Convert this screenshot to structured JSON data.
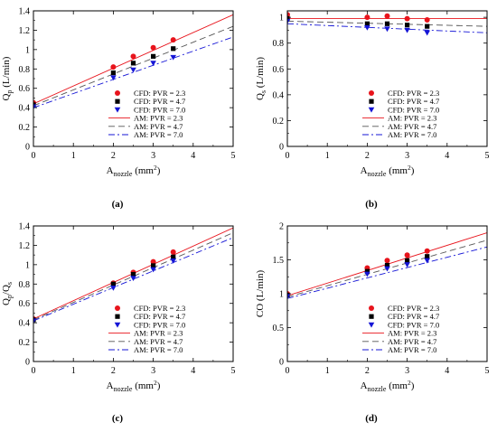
{
  "chart_data": [
    {
      "type": "scatter",
      "panel_label": "(a)",
      "ylabel": {
        "main": "Q",
        "sub": "p",
        "rest": " (L/min)"
      },
      "xlabel": {
        "main": "A",
        "sub": "nozzle",
        "rest": " (mm",
        "sup": "2",
        "close": ")"
      },
      "xlim": [
        0,
        5
      ],
      "ylim": [
        0,
        1.4
      ],
      "xticks": [
        "0",
        "1",
        "2",
        "3",
        "4",
        "5"
      ],
      "yticks": [
        "0",
        "0.2",
        "0.4",
        "0.6",
        "0.8",
        "1",
        "1.2",
        "1.4"
      ],
      "legend_position": "bottom-right",
      "series": [
        {
          "name": "CFD: PVR = 2.3",
          "kind": "markers",
          "marker": "circle",
          "color": "#e8141c",
          "x": [
            0,
            2,
            2.5,
            3,
            3.5
          ],
          "y": [
            0.45,
            0.82,
            0.93,
            1.02,
            1.1
          ]
        },
        {
          "name": "CFD: PVR = 4.7",
          "kind": "markers",
          "marker": "square",
          "color": "#000000",
          "x": [
            0,
            2,
            2.5,
            3,
            3.5
          ],
          "y": [
            0.43,
            0.76,
            0.86,
            0.93,
            1.01
          ]
        },
        {
          "name": "CFD: PVR = 7.0",
          "kind": "markers",
          "marker": "triangle",
          "color": "#1515d6",
          "x": [
            0,
            2,
            2.5,
            3,
            3.5
          ],
          "y": [
            0.41,
            0.71,
            0.79,
            0.86,
            0.92
          ]
        },
        {
          "name": "AM: PVR = 2.3",
          "kind": "line",
          "dash": "",
          "color": "#e8141c",
          "x": [
            0,
            5
          ],
          "y": [
            0.44,
            1.36
          ]
        },
        {
          "name": "AM: PVR = 4.7",
          "kind": "line",
          "dash": "7,4",
          "color": "#555555",
          "x": [
            0,
            5
          ],
          "y": [
            0.42,
            1.24
          ]
        },
        {
          "name": "AM: PVR = 7.0",
          "kind": "line",
          "dash": "7,3,2,3",
          "color": "#1515d6",
          "x": [
            0,
            5
          ],
          "y": [
            0.4,
            1.13
          ]
        }
      ]
    },
    {
      "type": "scatter",
      "panel_label": "(b)",
      "ylabel": {
        "main": "Q",
        "sub": "s",
        "rest": " (L/min)"
      },
      "xlabel": {
        "main": "A",
        "sub": "nozzle",
        "rest": " (mm",
        "sup": "2",
        "close": ")"
      },
      "xlim": [
        0,
        5
      ],
      "ylim": [
        0,
        1.05
      ],
      "xticks": [
        "0",
        "1",
        "2",
        "3",
        "4",
        "5"
      ],
      "yticks": [
        "0",
        "0.2",
        "0.4",
        "0.6",
        "0.8",
        "1"
      ],
      "legend_position": "bottom-right",
      "series": [
        {
          "name": "CFD: PVR = 2.3",
          "kind": "markers",
          "marker": "circle",
          "color": "#e8141c",
          "x": [
            0,
            2,
            2.5,
            3,
            3.5
          ],
          "y": [
            1.02,
            1.0,
            1.01,
            0.99,
            0.98
          ]
        },
        {
          "name": "CFD: PVR = 4.7",
          "kind": "markers",
          "marker": "square",
          "color": "#000000",
          "x": [
            0,
            2,
            2.5,
            3,
            3.5
          ],
          "y": [
            0.99,
            0.95,
            0.95,
            0.94,
            0.93
          ]
        },
        {
          "name": "CFD: PVR = 7.0",
          "kind": "markers",
          "marker": "triangle",
          "color": "#1515d6",
          "x": [
            0,
            2,
            2.5,
            3,
            3.5
          ],
          "y": [
            0.97,
            0.92,
            0.91,
            0.9,
            0.88
          ]
        },
        {
          "name": "AM: PVR = 2.3",
          "kind": "line",
          "dash": "",
          "color": "#e8141c",
          "x": [
            0,
            5
          ],
          "y": [
            0.99,
            0.99
          ]
        },
        {
          "name": "AM: PVR = 4.7",
          "kind": "line",
          "dash": "7,4",
          "color": "#555555",
          "x": [
            0,
            5
          ],
          "y": [
            0.97,
            0.93
          ]
        },
        {
          "name": "AM: PVR = 7.0",
          "kind": "line",
          "dash": "7,3,2,3",
          "color": "#1515d6",
          "x": [
            0,
            5
          ],
          "y": [
            0.95,
            0.88
          ]
        }
      ]
    },
    {
      "type": "scatter",
      "panel_label": "(c)",
      "ylabel": {
        "main": "Q",
        "sub": "p",
        "rest": "/Q",
        "sub2": "s"
      },
      "xlabel": {
        "main": "A",
        "sub": "nozzle",
        "rest": " (mm",
        "sup": "2",
        "close": ")"
      },
      "xlim": [
        0,
        5
      ],
      "ylim": [
        0,
        1.4
      ],
      "xticks": [
        "0",
        "1",
        "2",
        "3",
        "4",
        "5"
      ],
      "yticks": [
        "0",
        "0.2",
        "0.4",
        "0.6",
        "0.8",
        "1",
        "1.2",
        "1.4"
      ],
      "legend_position": "bottom-right",
      "series": [
        {
          "name": "CFD: PVR = 2.3",
          "kind": "markers",
          "marker": "circle",
          "color": "#e8141c",
          "x": [
            0,
            2,
            2.5,
            3,
            3.5
          ],
          "y": [
            0.44,
            0.81,
            0.92,
            1.03,
            1.13
          ]
        },
        {
          "name": "CFD: PVR = 4.7",
          "kind": "markers",
          "marker": "square",
          "color": "#000000",
          "x": [
            0,
            2,
            2.5,
            3,
            3.5
          ],
          "y": [
            0.43,
            0.8,
            0.9,
            0.99,
            1.08
          ]
        },
        {
          "name": "CFD: PVR = 7.0",
          "kind": "markers",
          "marker": "triangle",
          "color": "#1515d6",
          "x": [
            0,
            2,
            2.5,
            3,
            3.5
          ],
          "y": [
            0.42,
            0.76,
            0.86,
            0.95,
            1.04
          ]
        },
        {
          "name": "AM: PVR = 2.3",
          "kind": "line",
          "dash": "",
          "color": "#e8141c",
          "x": [
            0,
            5
          ],
          "y": [
            0.44,
            1.38
          ]
        },
        {
          "name": "AM: PVR = 4.7",
          "kind": "line",
          "dash": "7,4",
          "color": "#555555",
          "x": [
            0,
            5
          ],
          "y": [
            0.43,
            1.33
          ]
        },
        {
          "name": "AM: PVR = 7.0",
          "kind": "line",
          "dash": "7,3,2,3",
          "color": "#1515d6",
          "x": [
            0,
            5
          ],
          "y": [
            0.42,
            1.28
          ]
        }
      ]
    },
    {
      "type": "scatter",
      "panel_label": "(d)",
      "ylabel": {
        "main": "CO (L/min)"
      },
      "xlabel": {
        "main": "A",
        "sub": "nozzle",
        "rest": " (mm",
        "sup": "2",
        "close": ")"
      },
      "xlim": [
        0,
        5
      ],
      "ylim": [
        0,
        2
      ],
      "xticks": [
        "0",
        "1",
        "2",
        "3",
        "4",
        "5"
      ],
      "yticks": [
        "0",
        "0.5",
        "1",
        "1.5",
        "2"
      ],
      "legend_position": "bottom-right",
      "series": [
        {
          "name": "CFD: PVR = 2.3",
          "kind": "markers",
          "marker": "circle",
          "color": "#e8141c",
          "x": [
            0,
            2,
            2.5,
            3,
            3.5
          ],
          "y": [
            1.0,
            1.38,
            1.49,
            1.57,
            1.63
          ]
        },
        {
          "name": "CFD: PVR = 4.7",
          "kind": "markers",
          "marker": "square",
          "color": "#000000",
          "x": [
            0,
            2,
            2.5,
            3,
            3.5
          ],
          "y": [
            0.98,
            1.33,
            1.42,
            1.49,
            1.55
          ]
        },
        {
          "name": "CFD: PVR = 7.0",
          "kind": "markers",
          "marker": "triangle",
          "color": "#1515d6",
          "x": [
            0,
            2,
            2.5,
            3,
            3.5
          ],
          "y": [
            0.96,
            1.29,
            1.37,
            1.43,
            1.49
          ]
        },
        {
          "name": "AM: PVR = 2.3",
          "kind": "line",
          "dash": "",
          "color": "#e8141c",
          "x": [
            0,
            5
          ],
          "y": [
            0.97,
            1.9
          ]
        },
        {
          "name": "AM: PVR = 4.7",
          "kind": "line",
          "dash": "7,4",
          "color": "#555555",
          "x": [
            0,
            5
          ],
          "y": [
            0.95,
            1.79
          ]
        },
        {
          "name": "AM: PVR = 7.0",
          "kind": "line",
          "dash": "7,3,2,3",
          "color": "#1515d6",
          "x": [
            0,
            5
          ],
          "y": [
            0.93,
            1.69
          ]
        }
      ]
    }
  ]
}
